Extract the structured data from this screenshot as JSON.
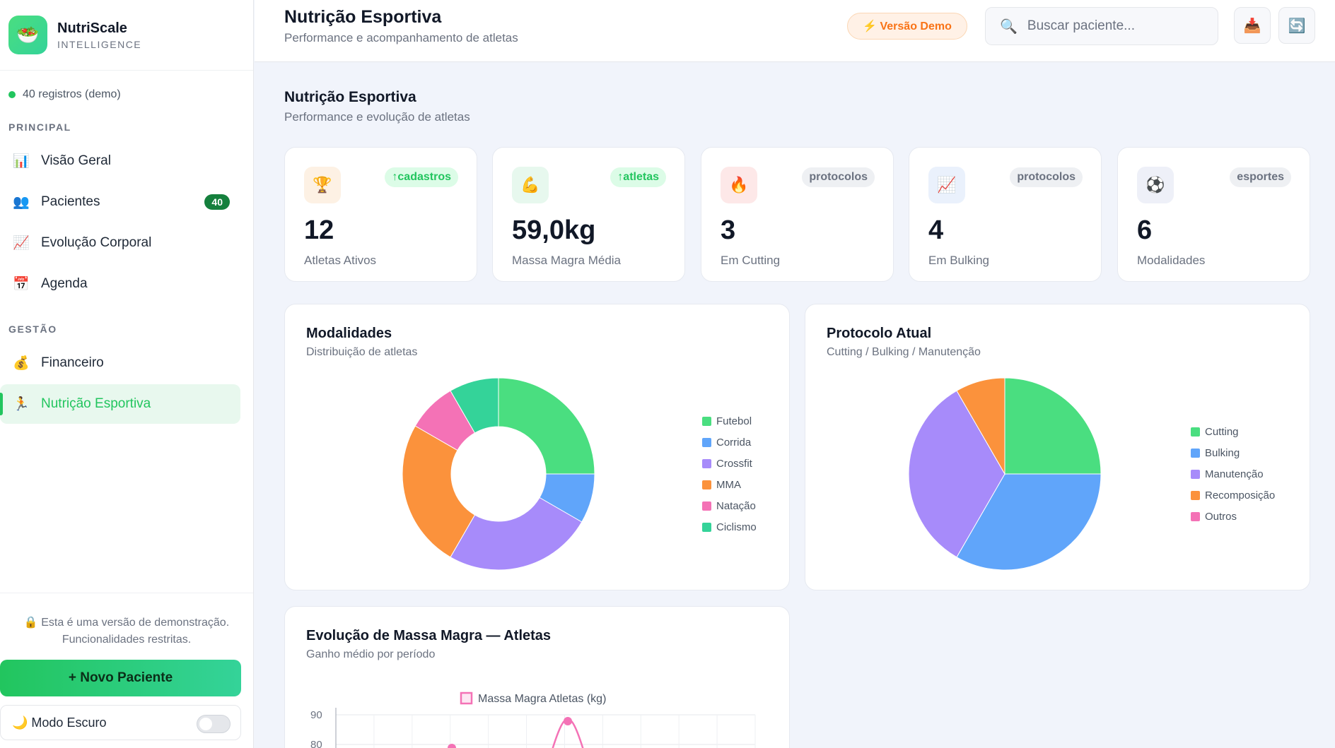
{
  "brand": {
    "name": "NutriScale",
    "subtitle": "INTELLIGENCE",
    "logo_icon": "🥗"
  },
  "sidebar": {
    "records": "40 registros (demo)",
    "sections": [
      {
        "label": "PRINCIPAL"
      },
      {
        "label": "GESTÃO"
      }
    ],
    "items": [
      {
        "icon": "📊",
        "label": "Visão Geral"
      },
      {
        "icon": "👥",
        "label": "Pacientes",
        "badge": "40"
      },
      {
        "icon": "📈",
        "label": "Evolução Corporal"
      },
      {
        "icon": "📅",
        "label": "Agenda"
      },
      {
        "icon": "💰",
        "label": "Financeiro"
      },
      {
        "icon": "🏃",
        "label": "Nutrição Esportiva",
        "active": true
      }
    ],
    "demo_note_line1": "🔒 Esta é uma versão de demonstração.",
    "demo_note_line2": "Funcionalidades restritas.",
    "new_patient": "+  Novo Paciente",
    "dark_mode": "🌙  Modo Escuro"
  },
  "header": {
    "title": "Nutrição Esportiva",
    "subtitle": "Performance e acompanhamento de atletas",
    "demo_pill": "⚡ Versão Demo",
    "search_icon": "🔍",
    "search_placeholder": "Buscar paciente...",
    "export_icon": "📥",
    "refresh_icon": "🔄"
  },
  "page": {
    "title": "Nutrição Esportiva",
    "subtitle": "Performance e evolução de atletas"
  },
  "stats": [
    {
      "icon": "🏆",
      "icon_bg": "#fdf1e4",
      "tag": "↑cadastros",
      "tag_style": "green",
      "value": "12",
      "label": "Atletas Ativos"
    },
    {
      "icon": "💪",
      "icon_bg": "#e7f8ee",
      "tag": "↑atletas",
      "tag_style": "green",
      "value": "59,0kg",
      "label": "Massa Magra Média"
    },
    {
      "icon": "🔥",
      "icon_bg": "#fde8e8",
      "tag": "protocolos",
      "tag_style": "gray",
      "value": "3",
      "label": "Em Cutting"
    },
    {
      "icon": "📈",
      "icon_bg": "#eaf1fc",
      "tag": "protocolos",
      "tag_style": "gray",
      "value": "4",
      "label": "Em Bulking"
    },
    {
      "icon": "⚽",
      "icon_bg": "#eef0f8",
      "tag": "esportes",
      "tag_style": "gray",
      "value": "6",
      "label": "Modalidades"
    }
  ],
  "charts": {
    "modalidades": {
      "title": "Modalidades",
      "subtitle": "Distribuição de atletas"
    },
    "protocolo": {
      "title": "Protocolo Atual",
      "subtitle": "Cutting / Bulking / Manutenção"
    },
    "massa": {
      "title": "Evolução de Massa Magra — Atletas",
      "subtitle": "Ganho médio por período"
    }
  },
  "chart_data": [
    {
      "type": "pie",
      "variant": "doughnut",
      "categories": [
        "Futebol",
        "Corrida",
        "Crossfit",
        "MMA",
        "Natação",
        "Ciclismo"
      ],
      "values": [
        3,
        1,
        3,
        3,
        1,
        1
      ],
      "colors": [
        "#4ade80",
        "#60a5fa",
        "#a78bfa",
        "#fb923c",
        "#f472b6",
        "#34d399"
      ],
      "legend": "right"
    },
    {
      "type": "pie",
      "categories": [
        "Cutting",
        "Bulking",
        "Manutenção",
        "Recomposição",
        "Outros"
      ],
      "values": [
        3,
        4,
        4,
        1,
        0
      ],
      "colors": [
        "#4ade80",
        "#60a5fa",
        "#a78bfa",
        "#fb923c",
        "#f472b6"
      ],
      "legend": "right"
    },
    {
      "type": "line",
      "series": [
        {
          "name": "Massa Magra Atletas (kg)",
          "color": "#f472b6"
        }
      ],
      "y_ticks": [
        "90",
        "80"
      ],
      "legend": "top"
    }
  ]
}
